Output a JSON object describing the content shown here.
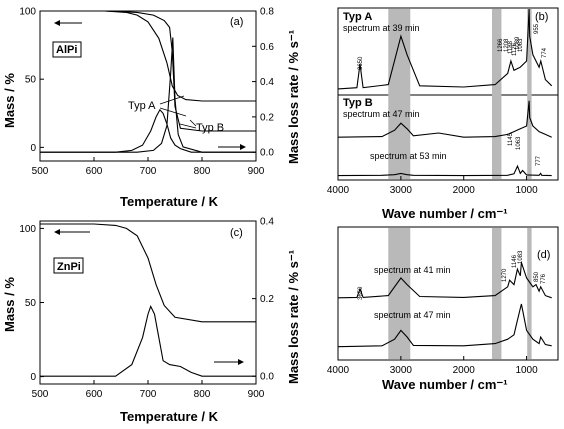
{
  "chart_data": [
    {
      "id": "a",
      "type": "line",
      "panel_label": "(a)",
      "sample_box": "AlPi",
      "xlabel": "Temperature / K",
      "ylabel_left": "Mass / %",
      "ylabel_right": "Mass loss rate / % s⁻¹",
      "xlim": [
        500,
        900
      ],
      "ylim_left": [
        -10,
        100
      ],
      "ylim_right": [
        -0.05,
        0.8
      ],
      "xticks": [
        "500",
        "600",
        "700",
        "800",
        "900"
      ],
      "yticks_left": [
        "0",
        "50",
        "100"
      ],
      "yticks_right": [
        "0.0",
        "0.2",
        "0.4",
        "0.6",
        "0.8"
      ],
      "annotations": [
        "Typ A",
        "Typ B"
      ],
      "series": [
        {
          "axis": "left",
          "x": [
            500,
            620,
            660,
            680,
            700,
            720,
            735,
            745,
            755,
            770,
            800,
            900
          ],
          "y": [
            100,
            100,
            99,
            97,
            92,
            80,
            62,
            45,
            38,
            35,
            34,
            34
          ]
        },
        {
          "axis": "left",
          "x": [
            500,
            620,
            680,
            710,
            730,
            740,
            745,
            750,
            760,
            800,
            900
          ],
          "y": [
            100,
            100,
            99,
            97,
            93,
            88,
            70,
            30,
            14,
            12,
            12
          ]
        },
        {
          "axis": "right",
          "x": [
            500,
            640,
            670,
            690,
            705,
            715,
            722,
            728,
            735,
            742,
            750,
            760,
            780,
            900
          ],
          "y": [
            0,
            0,
            0.01,
            0.04,
            0.12,
            0.2,
            0.24,
            0.22,
            0.16,
            0.08,
            0.04,
            0.02,
            0,
            0
          ]
        },
        {
          "axis": "right",
          "x": [
            500,
            680,
            710,
            725,
            735,
            742,
            746,
            750,
            756,
            765,
            800,
            900
          ],
          "y": [
            0,
            0,
            0.01,
            0.05,
            0.15,
            0.45,
            0.65,
            0.3,
            0.1,
            0.03,
            0,
            0
          ]
        }
      ]
    },
    {
      "id": "c",
      "type": "line",
      "panel_label": "(c)",
      "sample_box": "ZnPi",
      "xlabel": "Temperature / K",
      "ylabel_left": "Mass / %",
      "ylabel_right": "Mass loss rate / % s⁻¹",
      "xlim": [
        500,
        900
      ],
      "ylim_left": [
        -5,
        105
      ],
      "ylim_right": [
        -0.02,
        0.4
      ],
      "xticks": [
        "500",
        "600",
        "700",
        "800",
        "900"
      ],
      "yticks_left": [
        "0",
        "50",
        "100"
      ],
      "yticks_right": [
        "0.0",
        "0.2",
        "0.4"
      ],
      "series": [
        {
          "axis": "left",
          "x": [
            500,
            600,
            640,
            660,
            680,
            700,
            715,
            730,
            750,
            800,
            900
          ],
          "y": [
            103,
            103,
            102,
            100,
            95,
            80,
            62,
            48,
            40,
            37,
            37
          ]
        },
        {
          "axis": "right",
          "x": [
            500,
            640,
            670,
            690,
            700,
            705,
            712,
            720,
            728,
            740,
            760,
            780,
            800,
            900
          ],
          "y": [
            0,
            0,
            0.03,
            0.1,
            0.16,
            0.18,
            0.16,
            0.1,
            0.04,
            0.03,
            0.025,
            0.01,
            0,
            0
          ]
        }
      ]
    },
    {
      "id": "b",
      "type": "line",
      "panel_label": "(b)",
      "xlabel": "Wave number / cm⁻¹",
      "xlim": [
        4000,
        500
      ],
      "xticks": [
        "4000",
        "3000",
        "2000",
        "1000"
      ],
      "labels": [
        "Typ A",
        "spectrum at 39 min",
        "Typ B",
        "spectrum at 47 min",
        "spectrum at 53 min"
      ],
      "peak_labels": [
        "3650",
        "1266",
        "1208",
        "1188",
        "1126",
        "1089",
        "1063",
        "955",
        "774",
        "1145",
        "1063",
        "777"
      ],
      "series": [
        {
          "x": [
            4000,
            3700,
            3650,
            3600,
            3200,
            3000,
            2900,
            2700,
            2000,
            1500,
            1300,
            1250,
            1200,
            1100,
            1000,
            960,
            950,
            900,
            800,
            774,
            700,
            600
          ],
          "y": [
            0.05,
            0.07,
            0.45,
            0.07,
            0.12,
            0.9,
            0.6,
            0.1,
            0.08,
            0.12,
            0.3,
            0.5,
            0.35,
            0.4,
            0.5,
            1.5,
            0.9,
            0.6,
            0.4,
            0.5,
            0.2,
            0.1
          ]
        },
        {
          "x": [
            4000,
            3300,
            3100,
            3000,
            2900,
            2800,
            2400,
            2000,
            1500,
            1300,
            1200,
            1100,
            1000,
            960,
            950,
            900,
            800,
            700,
            600
          ],
          "y": [
            0.1,
            0.12,
            0.35,
            0.6,
            0.4,
            0.15,
            0.25,
            0.1,
            0.12,
            0.2,
            0.3,
            0.4,
            0.5,
            1.4,
            0.8,
            0.5,
            0.3,
            0.2,
            0.1
          ]
        },
        {
          "x": [
            4000,
            3300,
            3100,
            3000,
            2900,
            2800,
            2000,
            1300,
            1200,
            1145,
            1100,
            1063,
            1000,
            800,
            777,
            760,
            600
          ],
          "y": [
            0.02,
            0.03,
            0.06,
            0.12,
            0.06,
            0.03,
            0.02,
            0.03,
            0.1,
            0.45,
            0.12,
            0.25,
            0.05,
            0.03,
            0.12,
            0.03,
            0.02
          ]
        }
      ],
      "highlight_bands": [
        [
          3200,
          2850
        ],
        [
          1550,
          1400
        ],
        [
          990,
          920
        ]
      ]
    },
    {
      "id": "d",
      "type": "line",
      "panel_label": "(d)",
      "xlabel": "Wave number / cm⁻¹",
      "xlim": [
        4000,
        500
      ],
      "xticks": [
        "4000",
        "3000",
        "2000",
        "1000"
      ],
      "labels": [
        "spectrum at 41 min",
        "spectrum at 47 min"
      ],
      "peak_labels": [
        "3650",
        "1270",
        "1146",
        "1083",
        "850",
        "776"
      ],
      "series": [
        {
          "x": [
            4000,
            3700,
            3650,
            3600,
            3200,
            3000,
            2900,
            2700,
            2000,
            1500,
            1300,
            1270,
            1200,
            1146,
            1100,
            1083,
            1000,
            900,
            850,
            800,
            776,
            700,
            600
          ],
          "y": [
            0.05,
            0.06,
            0.25,
            0.06,
            0.1,
            0.5,
            0.35,
            0.08,
            0.06,
            0.1,
            0.3,
            0.45,
            0.35,
            0.7,
            0.55,
            0.85,
            0.5,
            0.3,
            0.35,
            0.2,
            0.3,
            0.1,
            0.05
          ]
        },
        {
          "x": [
            4000,
            3300,
            3100,
            3000,
            2900,
            2800,
            2000,
            1500,
            1300,
            1200,
            1150,
            1100,
            1083,
            1000,
            900,
            800,
            776,
            700,
            600
          ],
          "y": [
            0.03,
            0.05,
            0.2,
            0.4,
            0.25,
            0.06,
            0.05,
            0.1,
            0.2,
            0.3,
            0.6,
            0.9,
            1.0,
            0.4,
            0.2,
            0.1,
            0.25,
            0.08,
            0.05
          ]
        }
      ],
      "highlight_bands": [
        [
          3200,
          2850
        ],
        [
          1550,
          1400
        ],
        [
          990,
          920
        ]
      ]
    }
  ]
}
